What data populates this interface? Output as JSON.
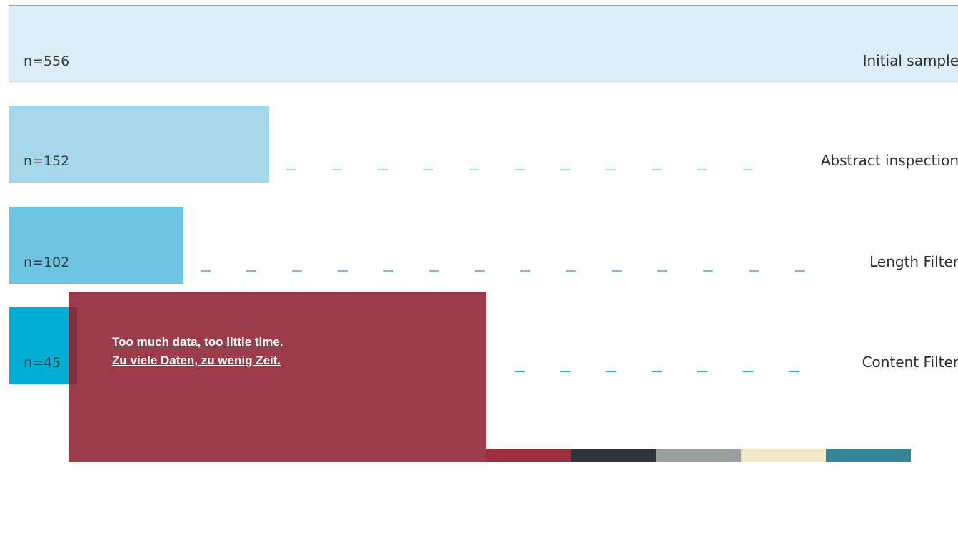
{
  "chart_data": {
    "type": "bar",
    "orientation": "horizontal",
    "categories": [
      "Initial sample",
      "Abstract inspection",
      "Length Filter",
      "Content Filter"
    ],
    "values": [
      556,
      152,
      102,
      45
    ],
    "value_labels": [
      "n=556",
      "n=152",
      "n=102",
      "n=45"
    ],
    "bar_colors": [
      "#dbeef8",
      "#a5d7ea",
      "#6ec4e3",
      "#00aed5"
    ],
    "leader_colors": [
      "#dbeef8",
      "#a5d7ea",
      "#6ec4e3",
      "#1aaccc"
    ],
    "xlim": [
      0,
      556
    ],
    "grid": false,
    "legend": "none"
  },
  "overlay": {
    "line1": "Too much data, too little time.",
    "line2": "Zu viele Daten, zu wenig Zeit.",
    "color": "#9c3c4a"
  },
  "palette": [
    "#9c2f3f",
    "#30343f",
    "#999e9e",
    "#f3e9c8",
    "#358699"
  ]
}
